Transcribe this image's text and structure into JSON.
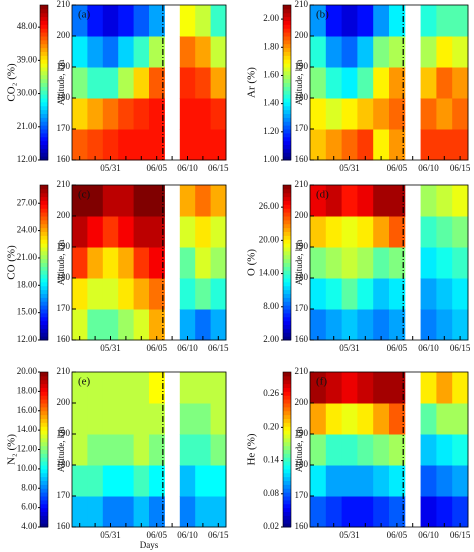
{
  "chart_data": [
    {
      "type": "heatmap",
      "title": "(a)",
      "colorbar_label": "CO₂ (%)",
      "ylabel": "Altitude, km",
      "colormap": "jet",
      "categories": [
        null,
        null,
        "05/31",
        null,
        null,
        "06/05",
        null,
        "06/10",
        null,
        "06/15"
      ],
      "y": [
        165,
        175,
        185,
        195,
        205
      ],
      "z": [
        [
          45,
          46,
          47,
          48,
          48,
          48,
          null,
          48,
          48,
          48
        ],
        [
          40,
          42,
          44,
          46,
          47,
          48,
          null,
          48,
          48,
          47
        ],
        [
          33,
          30,
          30,
          35,
          40,
          45,
          null,
          47,
          46,
          42
        ],
        [
          27,
          24,
          22,
          26,
          30,
          35,
          null,
          44,
          42,
          36
        ],
        [
          22,
          18,
          16,
          18,
          21,
          24,
          null,
          38,
          36,
          30
        ]
      ],
      "ylim": [
        160,
        210
      ],
      "yticks": [
        160,
        170,
        180,
        190,
        200,
        210
      ],
      "clim": [
        12,
        54
      ],
      "cticks": [
        {
          "value": 12,
          "label": "12.00"
        },
        {
          "value": 21,
          "label": "21.00"
        },
        {
          "value": 30,
          "label": "30.00"
        },
        {
          "value": 39,
          "label": "39.00"
        },
        {
          "value": 48,
          "label": "48.00"
        }
      ]
    },
    {
      "type": "heatmap",
      "title": "(b)",
      "colorbar_label": "Ar (%)",
      "ylabel": "Altitude, km",
      "colormap": "jet",
      "categories": [
        null,
        null,
        "05/31",
        null,
        null,
        "06/05",
        null,
        "06/10",
        null,
        "06/15"
      ],
      "y": [
        165,
        175,
        185,
        195,
        205
      ],
      "z": [
        [
          1.75,
          1.8,
          1.85,
          1.9,
          1.7,
          1.8,
          null,
          1.9,
          1.9,
          1.9
        ],
        [
          1.7,
          1.65,
          1.7,
          1.75,
          1.8,
          1.85,
          null,
          1.85,
          1.8,
          1.85
        ],
        [
          1.55,
          1.45,
          1.4,
          1.5,
          1.7,
          1.8,
          null,
          1.75,
          1.85,
          1.8
        ],
        [
          1.45,
          1.3,
          1.25,
          1.35,
          1.55,
          1.6,
          null,
          1.6,
          1.7,
          1.65
        ],
        [
          1.3,
          1.15,
          1.1,
          1.15,
          1.3,
          1.4,
          null,
          1.45,
          1.5,
          1.5
        ]
      ],
      "ylim": [
        160,
        210
      ],
      "yticks": [
        160,
        170,
        180,
        190,
        200,
        210
      ],
      "clim": [
        1.0,
        2.1
      ],
      "cticks": [
        {
          "value": 1.0,
          "label": "1.00"
        },
        {
          "value": 1.2,
          "label": "1.20"
        },
        {
          "value": 1.4,
          "label": "1.40"
        },
        {
          "value": 1.6,
          "label": "1.60"
        },
        {
          "value": 1.8,
          "label": "1.80"
        },
        {
          "value": 2.0,
          "label": "2.00"
        }
      ]
    },
    {
      "type": "heatmap",
      "title": "(c)",
      "colorbar_label": "CO (%)",
      "ylabel": "Altitude, km",
      "colormap": "jet",
      "categories": [
        null,
        null,
        "05/31",
        null,
        null,
        "06/05",
        null,
        "06/10",
        null,
        "06/15"
      ],
      "y": [
        165,
        175,
        185,
        195,
        205
      ],
      "z": [
        [
          22,
          20,
          20,
          21,
          22,
          24,
          null,
          17,
          16,
          17
        ],
        [
          23,
          22,
          22,
          23,
          24,
          25,
          null,
          19,
          20,
          19
        ],
        [
          26,
          24,
          23,
          24,
          26,
          27,
          null,
          20,
          22,
          21
        ],
        [
          28,
          27,
          26,
          27,
          28,
          28,
          null,
          22,
          23,
          22
        ],
        [
          29,
          29,
          28,
          28,
          29,
          29,
          null,
          24,
          25,
          24
        ]
      ],
      "ylim": [
        160,
        210
      ],
      "yticks": [
        160,
        170,
        180,
        190,
        200,
        210
      ],
      "clim": [
        12,
        29
      ],
      "cticks": [
        {
          "value": 12,
          "label": "12.00"
        },
        {
          "value": 15,
          "label": "15.00"
        },
        {
          "value": 18,
          "label": "18.00"
        },
        {
          "value": 21,
          "label": "21.00"
        },
        {
          "value": 24,
          "label": "24.00"
        },
        {
          "value": 27,
          "label": "27.00"
        }
      ]
    },
    {
      "type": "heatmap",
      "title": "(d)",
      "colorbar_label": "O (%)",
      "ylabel": "Altitude, km",
      "colormap": "jet",
      "categories": [
        null,
        null,
        "05/31",
        null,
        null,
        "06/05",
        null,
        "06/10",
        null,
        "06/15"
      ],
      "y": [
        165,
        175,
        185,
        195,
        205
      ],
      "z": [
        [
          9,
          10,
          11,
          10,
          9,
          10,
          null,
          9,
          10,
          11
        ],
        [
          12,
          13,
          15,
          13,
          11,
          12,
          null,
          10,
          11,
          12
        ],
        [
          16,
          17,
          18,
          17,
          15,
          16,
          null,
          12,
          13,
          14
        ],
        [
          21,
          20,
          19,
          20,
          22,
          24,
          null,
          14,
          15,
          16
        ],
        [
          27,
          28,
          26,
          27,
          29,
          29,
          null,
          17,
          18,
          19
        ]
      ],
      "ylim": [
        160,
        210
      ],
      "yticks": [
        160,
        170,
        180,
        190,
        200,
        210
      ],
      "clim": [
        2,
        30
      ],
      "cticks": [
        {
          "value": 2,
          "label": "2.00"
        },
        {
          "value": 8,
          "label": "8.00"
        },
        {
          "value": 14,
          "label": "14.00"
        },
        {
          "value": 20,
          "label": "20.00"
        },
        {
          "value": 26,
          "label": "26.00"
        }
      ]
    },
    {
      "type": "heatmap",
      "title": "(e)",
      "colorbar_label": "N₂ (%)",
      "ylabel": "Altitude, km",
      "xlabel": "Days",
      "colormap": "jet",
      "categories": [
        null,
        null,
        "05/31",
        null,
        null,
        "06/05",
        null,
        "06/10",
        null,
        "06/15"
      ],
      "y": [
        165,
        175,
        185,
        195,
        205
      ],
      "z": [
        [
          9,
          9,
          8,
          8,
          9,
          8,
          null,
          8,
          9,
          9
        ],
        [
          11,
          11,
          10,
          10,
          11,
          10,
          null,
          9,
          10,
          10
        ],
        [
          13,
          12,
          12,
          12,
          13,
          12,
          null,
          11,
          11,
          12
        ],
        [
          13,
          13,
          13,
          13,
          13,
          13,
          null,
          12,
          12,
          13
        ],
        [
          13,
          13,
          13,
          13,
          13,
          14,
          null,
          13,
          13,
          13
        ]
      ],
      "ylim": [
        160,
        210
      ],
      "yticks": [
        160,
        170,
        180,
        190,
        200,
        210
      ],
      "clim": [
        4,
        20
      ],
      "cticks": [
        {
          "value": 4,
          "label": "4.00"
        },
        {
          "value": 6,
          "label": "6.00"
        },
        {
          "value": 8,
          "label": "8.00"
        },
        {
          "value": 10,
          "label": "10.00"
        },
        {
          "value": 12,
          "label": "12.00"
        },
        {
          "value": 14,
          "label": "14.00"
        },
        {
          "value": 16,
          "label": "16.00"
        },
        {
          "value": 18,
          "label": "18.00"
        },
        {
          "value": 20,
          "label": "20.00"
        }
      ]
    },
    {
      "type": "heatmap",
      "title": "(f)",
      "colorbar_label": "He (%)",
      "ylabel": "Altitude, km",
      "colormap": "jet",
      "categories": [
        null,
        null,
        "05/31",
        null,
        null,
        "06/05",
        null,
        "06/10",
        null,
        "06/15"
      ],
      "y": [
        165,
        175,
        185,
        195,
        205
      ],
      "z": [
        [
          0.08,
          0.07,
          0.06,
          0.06,
          0.07,
          0.08,
          null,
          0.05,
          0.06,
          0.07
        ],
        [
          0.12,
          0.1,
          0.1,
          0.1,
          0.11,
          0.12,
          null,
          0.08,
          0.09,
          0.1
        ],
        [
          0.16,
          0.14,
          0.14,
          0.15,
          0.16,
          0.17,
          null,
          0.11,
          0.12,
          0.13
        ],
        [
          0.22,
          0.2,
          0.19,
          0.2,
          0.22,
          0.24,
          null,
          0.15,
          0.17,
          0.17
        ],
        [
          0.29,
          0.28,
          0.27,
          0.28,
          0.29,
          0.29,
          null,
          0.2,
          0.22,
          0.2
        ]
      ],
      "ylim": [
        160,
        210
      ],
      "yticks": [
        160,
        170,
        180,
        190,
        200,
        210
      ],
      "clim": [
        0.02,
        0.3
      ],
      "cticks": [
        {
          "value": 0.02,
          "label": "0.02"
        },
        {
          "value": 0.08,
          "label": "0.08"
        },
        {
          "value": 0.14,
          "label": "0.14"
        },
        {
          "value": 0.2,
          "label": "0.20"
        },
        {
          "value": 0.26,
          "label": "0.26"
        }
      ]
    }
  ]
}
